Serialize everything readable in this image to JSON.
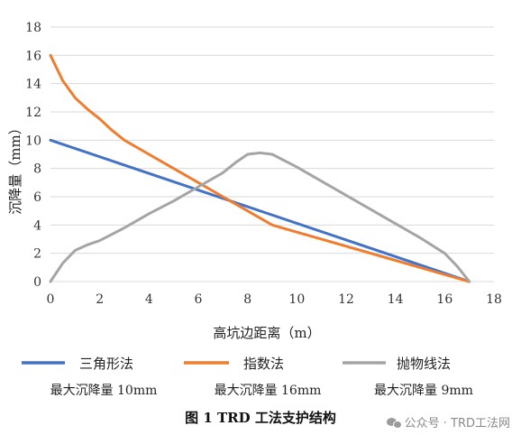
{
  "chart_data": {
    "type": "line",
    "xlabel": "高坑边距离（m）",
    "ylabel": "沉降量（mm）",
    "xlim": [
      0,
      18
    ],
    "ylim": [
      0,
      18
    ],
    "x_ticks": [
      0,
      2,
      4,
      6,
      8,
      10,
      12,
      14,
      16,
      18
    ],
    "y_ticks": [
      0,
      2,
      4,
      6,
      8,
      10,
      12,
      14,
      16,
      18
    ],
    "grid": "horizontal",
    "legend_position": "bottom",
    "series": [
      {
        "name": "三角形法",
        "note": "最大沉降量 10mm",
        "color": "#4472C4",
        "x": [
          0,
          17
        ],
        "y": [
          10,
          0
        ]
      },
      {
        "name": "指数法",
        "note": "最大沉降量 16mm",
        "color": "#ED7D31",
        "x": [
          0,
          0.5,
          1,
          1.5,
          2,
          2.5,
          3,
          4,
          5,
          6,
          7,
          8,
          9,
          10,
          12,
          14,
          16,
          17
        ],
        "y": [
          16,
          14.2,
          13,
          12.2,
          11.5,
          10.7,
          10,
          9,
          8,
          7,
          6,
          5,
          4,
          3.5,
          2.5,
          1.5,
          0.5,
          0
        ]
      },
      {
        "name": "抛物线法",
        "note": "最大沉降量 9mm",
        "color": "#A5A5A5",
        "x": [
          0,
          0.5,
          1,
          1.5,
          2,
          3,
          4,
          5,
          6,
          7,
          7.5,
          8,
          8.5,
          9,
          10,
          11,
          12,
          13,
          14,
          15,
          16,
          16.5,
          17
        ],
        "y": [
          0,
          1.3,
          2.2,
          2.6,
          2.9,
          3.8,
          4.8,
          5.7,
          6.7,
          7.7,
          8.4,
          9.0,
          9.1,
          9.0,
          8.1,
          7.1,
          6.1,
          5.1,
          4.1,
          3.1,
          2.0,
          1.1,
          0
        ]
      }
    ]
  },
  "caption": "图 1  TRD 工法支护结构",
  "watermark": {
    "text": "公众号 · TRD工法网",
    "icon": "wechat-icon"
  }
}
